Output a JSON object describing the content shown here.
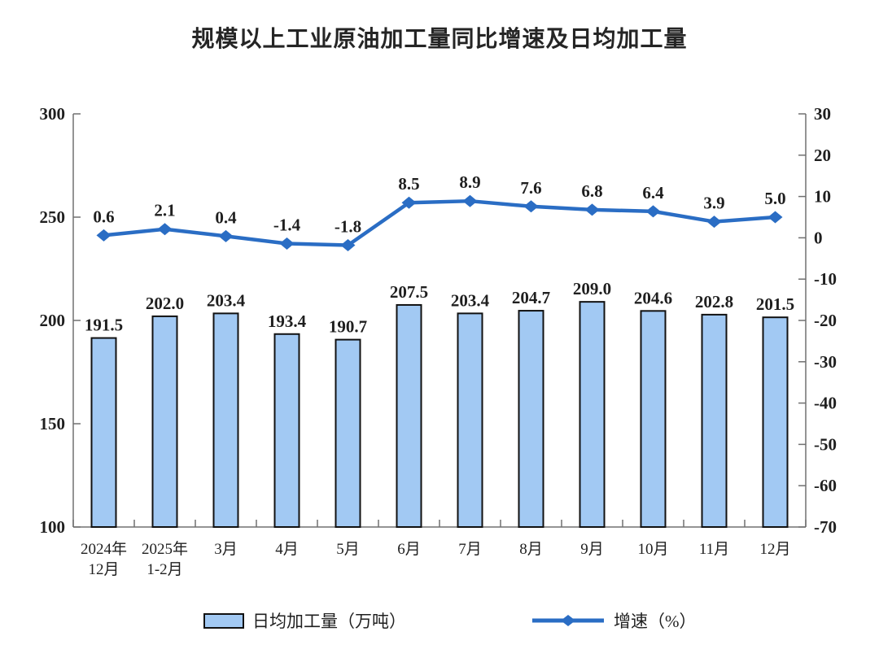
{
  "title": "规模以上工业原油加工量同比增速及日均加工量",
  "chart_data": {
    "type": "bar",
    "subtype": "bar+line dual-axis combo",
    "title": "规模以上工业原油加工量同比增速及日均加工量",
    "categories": [
      "2024年12月",
      "2025年1-2月",
      "3月",
      "4月",
      "5月",
      "6月",
      "7月",
      "8月",
      "9月",
      "10月",
      "11月",
      "12月"
    ],
    "categories_multiline": [
      [
        "2024年",
        "12月"
      ],
      [
        "2025年",
        "1-2月"
      ],
      [
        "3月"
      ],
      [
        "4月"
      ],
      [
        "5月"
      ],
      [
        "6月"
      ],
      [
        "7月"
      ],
      [
        "8月"
      ],
      [
        "9月"
      ],
      [
        "10月"
      ],
      [
        "11月"
      ],
      [
        "12月"
      ]
    ],
    "series": [
      {
        "name": "日均加工量（万吨）",
        "type": "bar",
        "axis": "left",
        "values": [
          191.5,
          202.0,
          203.4,
          193.4,
          190.7,
          207.5,
          203.4,
          204.7,
          209.0,
          204.6,
          202.8,
          201.5
        ]
      },
      {
        "name": "增速（%）",
        "type": "line",
        "axis": "right",
        "values": [
          0.6,
          2.1,
          0.4,
          -1.4,
          -1.8,
          8.5,
          8.9,
          7.6,
          6.8,
          6.4,
          3.9,
          5.0
        ]
      }
    ],
    "left_axis": {
      "min": 100,
      "max": 300,
      "ticks": [
        300,
        250,
        200,
        150,
        100
      ]
    },
    "right_axis": {
      "min": -70,
      "max": 30,
      "ticks": [
        30,
        20,
        10,
        0,
        -10,
        -20,
        -30,
        -40,
        -50,
        -60,
        -70
      ]
    },
    "grid": false,
    "legend_position": "bottom",
    "colors": {
      "bar_fill": "#A2C9F3",
      "bar_border": "#111111",
      "line": "#2A6DC4",
      "axis": "#707070",
      "text": "#1f1f1f"
    }
  },
  "legend": {
    "bar_label": "日均加工量（万吨）",
    "line_label": "增速（%）"
  }
}
